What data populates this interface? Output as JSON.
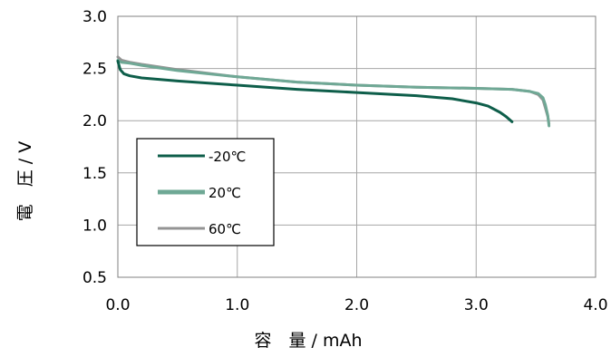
{
  "chart_data": {
    "type": "line",
    "xlabel": "容　量 / mAh",
    "ylabel": "電　圧 / V",
    "xlim": [
      0.0,
      4.0
    ],
    "ylim": [
      0.5,
      3.0
    ],
    "x_ticks": [
      "0.0",
      "1.0",
      "2.0",
      "3.0",
      "4.0"
    ],
    "y_ticks": [
      "0.5",
      "1.0",
      "1.5",
      "2.0",
      "2.5",
      "3.0"
    ],
    "grid": true,
    "legend_position": "left-middle",
    "series": [
      {
        "name": "-20℃",
        "color": "#0e5e4a",
        "x": [
          0.0,
          0.02,
          0.05,
          0.1,
          0.2,
          0.3,
          0.5,
          1.0,
          1.5,
          2.0,
          2.5,
          2.8,
          3.0,
          3.1,
          3.2,
          3.25,
          3.3
        ],
        "y": [
          2.57,
          2.49,
          2.45,
          2.43,
          2.41,
          2.4,
          2.38,
          2.34,
          2.3,
          2.27,
          2.24,
          2.21,
          2.17,
          2.14,
          2.08,
          2.04,
          1.99
        ]
      },
      {
        "name": "20℃",
        "color": "#6fa895",
        "x": [
          0.0,
          0.03,
          0.1,
          0.2,
          0.5,
          1.0,
          1.5,
          2.0,
          2.5,
          3.0,
          3.3,
          3.45,
          3.52,
          3.56,
          3.58,
          3.6,
          3.61
        ],
        "y": [
          2.58,
          2.56,
          2.55,
          2.53,
          2.48,
          2.42,
          2.37,
          2.34,
          2.32,
          2.31,
          2.3,
          2.28,
          2.26,
          2.22,
          2.15,
          2.05,
          1.95
        ]
      },
      {
        "name": "60℃",
        "color": "#949494",
        "x": [
          0.0,
          0.03,
          0.1,
          0.2,
          0.5,
          1.0,
          1.5,
          2.0,
          2.5,
          3.0,
          3.3,
          3.45,
          3.52,
          3.56,
          3.58,
          3.6,
          3.61
        ],
        "y": [
          2.61,
          2.58,
          2.56,
          2.54,
          2.49,
          2.42,
          2.37,
          2.34,
          2.32,
          2.31,
          2.3,
          2.28,
          2.25,
          2.2,
          2.12,
          2.04,
          1.97
        ]
      }
    ]
  }
}
